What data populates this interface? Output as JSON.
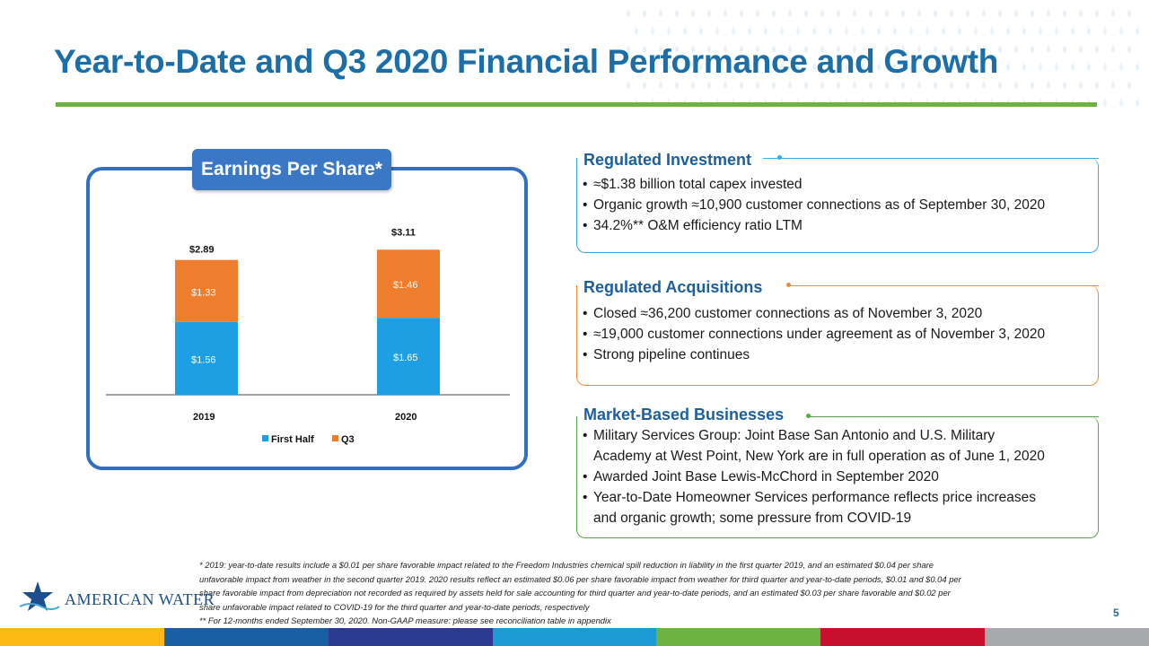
{
  "title": "Year-to-Date and Q3 2020 Financial Performance and Growth",
  "eps_panel": {
    "title": "Earnings Per Share*"
  },
  "chart_data": {
    "type": "bar",
    "stacked": true,
    "categories": [
      "2019",
      "2020"
    ],
    "series": [
      {
        "name": "First Half",
        "values": [
          1.56,
          1.65
        ],
        "labels": [
          "$1.56",
          "$1.65"
        ],
        "color": "#1e9fe3"
      },
      {
        "name": "Q3",
        "values": [
          1.33,
          1.46
        ],
        "labels": [
          "$1.33",
          "$1.46"
        ],
        "color": "#ef7d2e"
      }
    ],
    "totals": [
      "$2.89",
      "$3.11"
    ],
    "ylim": [
      0,
      3.5
    ],
    "legend": "bottom",
    "grid": false
  },
  "panels": [
    {
      "heading": "Regulated Investment",
      "color": "#39a9e0",
      "heading_color": "#1b5fa3",
      "bullets": [
        "≈$1.38 billion total capex invested",
        "Organic growth ≈10,900 customer connections as of September 30, 2020",
        "34.2%** O&M efficiency ratio LTM"
      ]
    },
    {
      "heading": "Regulated Acquisitions",
      "color": "#f08a32",
      "heading_color": "#1b5fa3",
      "bullets": [
        "Closed ≈36,200 customer connections as of November 3, 2020",
        "≈19,000 customer connections under agreement as of November 3, 2020",
        "Strong pipeline continues"
      ]
    },
    {
      "heading": "Market-Based Businesses",
      "color": "#55a846",
      "heading_color": "#1b5fa3",
      "bullets": [
        "Military Services Group: Joint Base San Antonio and U.S. Military",
        "Awarded Joint Base Lewis-McChord in September 2020",
        "Year-to-Date Homeowner Services performance reflects price increases"
      ],
      "continuations": [
        "Academy at West Point, New York are in full operation as of June 1, 2020",
        "and organic growth; some pressure from COVID-19"
      ]
    }
  ],
  "footnotes": [
    "* 2019: year-to-date results include a $0.01 per share favorable impact related to the Freedom Industries chemical spill reduction in liability in the first quarter 2019, and an estimated $0.04 per share",
    "unfavorable impact from weather in the second quarter 2019. 2020 results reflect an estimated $0.06 per share favorable impact from weather for third quarter and year-to-date periods, $0.01 and $0.04 per",
    "share favorable impact from depreciation not recorded as required by assets held for sale accounting for third quarter and year-to-date periods, and an estimated $0.03 per share favorable and $0.02 per",
    "share unfavorable impact related to COVID-19 for the third quarter and year-to-date periods, respectively",
    "** For 12-months ended September 30, 2020. Non-GAAP measure: please see reconciliation table in appendix"
  ],
  "logo": {
    "text": "AMERICAN WATER",
    "icon": "star-water-logo-icon"
  },
  "page_number": "5",
  "bottom_bar_colors": [
    "#fdb913",
    "#1b5fa3",
    "#2b3990",
    "#1c9ad6",
    "#6cb33f",
    "#c8102e",
    "#a6a8ab"
  ]
}
